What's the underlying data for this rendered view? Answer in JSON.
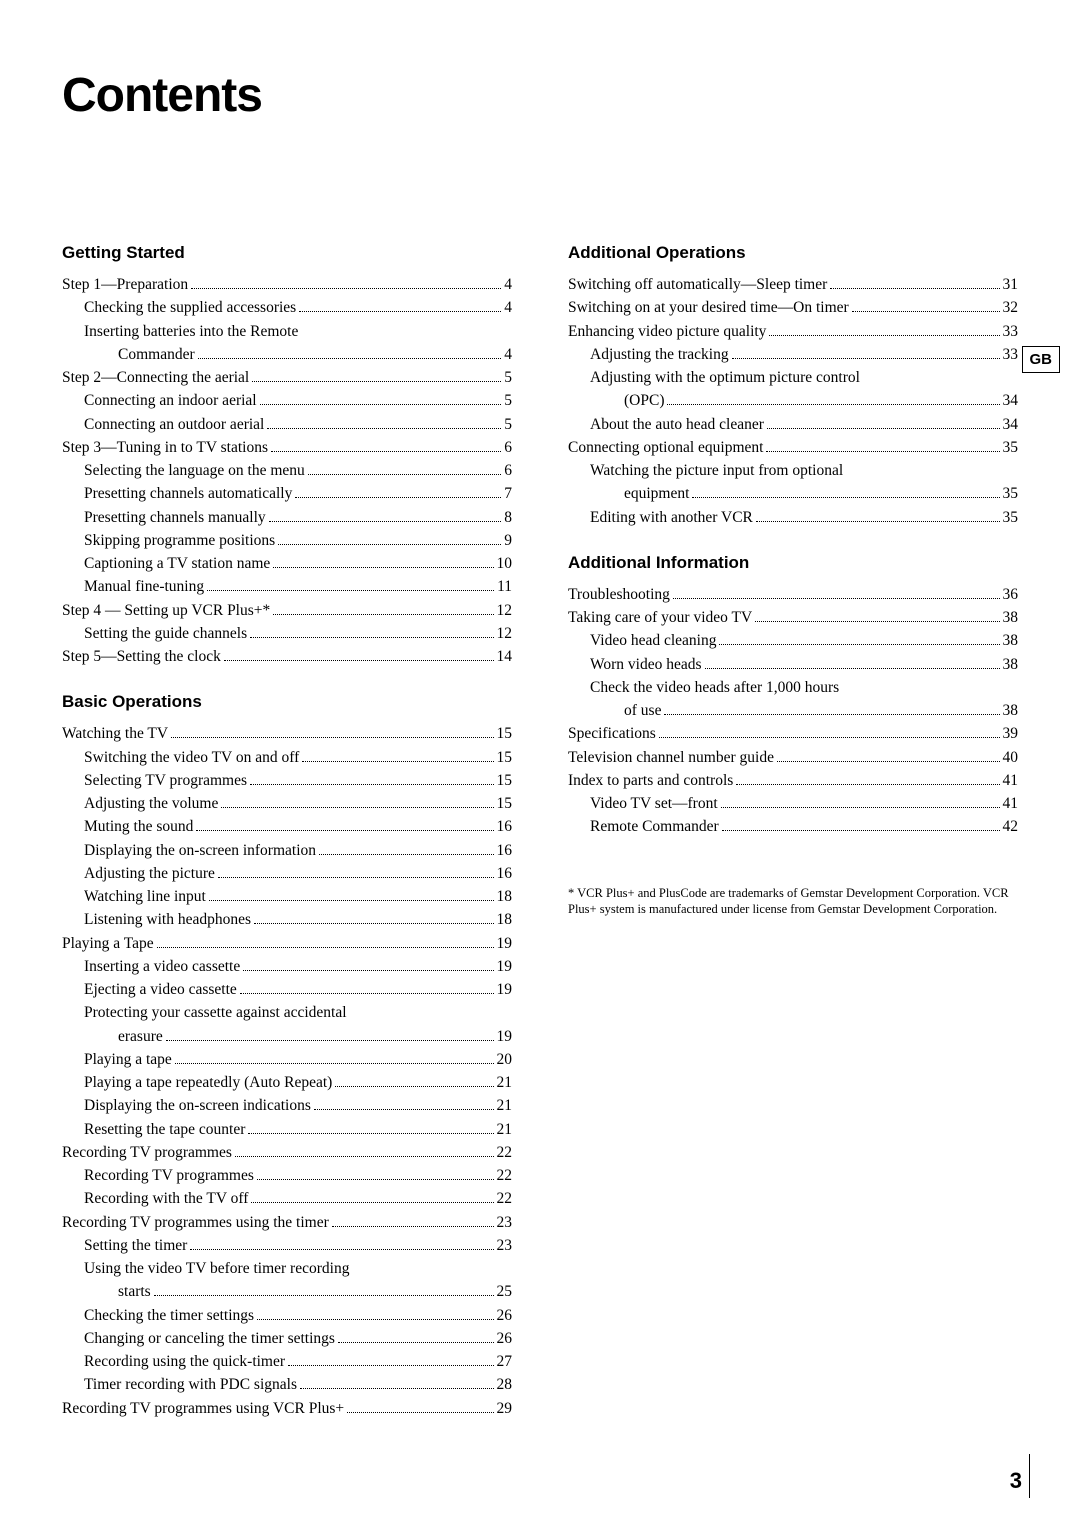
{
  "title": "Contents",
  "side_tab": "GB",
  "page_number": "3",
  "footnote": "* VCR Plus+ and PlusCode are trademarks of Gemstar Development Corporation.  VCR Plus+ system is manufactured under license from Gemstar Development Corporation.",
  "left": {
    "sections": [
      {
        "heading": "Getting Started",
        "items": [
          {
            "label": "Step 1—Preparation",
            "page": "4",
            "indent": 0
          },
          {
            "label": "Checking the supplied accessories",
            "page": "4",
            "indent": 1
          },
          {
            "label": "Inserting batteries into the Remote",
            "indent": 1,
            "cont": true
          },
          {
            "label": "Commander",
            "page": "4",
            "indent": 2
          },
          {
            "label": "Step 2—Connecting the aerial",
            "page": "5",
            "indent": 0
          },
          {
            "label": "Connecting an indoor aerial",
            "page": "5",
            "indent": 1
          },
          {
            "label": "Connecting an outdoor aerial",
            "page": "5",
            "indent": 1
          },
          {
            "label": "Step 3—Tuning in to TV stations",
            "page": "6",
            "indent": 0
          },
          {
            "label": "Selecting the language on the menu",
            "page": "6",
            "indent": 1
          },
          {
            "label": "Presetting channels automatically",
            "page": "7",
            "indent": 1
          },
          {
            "label": "Presetting channels manually",
            "page": "8",
            "indent": 1
          },
          {
            "label": "Skipping programme positions",
            "page": "9",
            "indent": 1
          },
          {
            "label": "Captioning a TV station name",
            "page": "10",
            "indent": 1
          },
          {
            "label": "Manual fine-tuning",
            "page": "11",
            "indent": 1
          },
          {
            "label": "Step 4 — Setting up VCR Plus+*",
            "page": "12",
            "indent": 0
          },
          {
            "label": "Setting the guide channels",
            "page": "12",
            "indent": 1
          },
          {
            "label": "Step 5—Setting the clock",
            "page": "14",
            "indent": 0
          }
        ]
      },
      {
        "heading": "Basic Operations",
        "items": [
          {
            "label": "Watching the TV",
            "page": "15",
            "indent": 0
          },
          {
            "label": "Switching the  video TV on and off",
            "page": "15",
            "indent": 1
          },
          {
            "label": "Selecting TV programmes",
            "page": "15",
            "indent": 1
          },
          {
            "label": "Adjusting the volume",
            "page": "15",
            "indent": 1
          },
          {
            "label": "Muting the sound",
            "page": "16",
            "indent": 1
          },
          {
            "label": "Displaying the on-screen information",
            "page": "16",
            "indent": 1
          },
          {
            "label": "Adjusting the picture",
            "page": "16",
            "indent": 1
          },
          {
            "label": "Watching line input",
            "page": "18",
            "indent": 1
          },
          {
            "label": "Listening with headphones",
            "page": "18",
            "indent": 1
          },
          {
            "label": "Playing a Tape",
            "page": "19",
            "indent": 0
          },
          {
            "label": "Inserting a video cassette",
            "page": "19",
            "indent": 1
          },
          {
            "label": "Ejecting a video cassette",
            "page": "19",
            "indent": 1
          },
          {
            "label": "Protecting your cassette against accidental",
            "indent": 1,
            "cont": true
          },
          {
            "label": "erasure",
            "page": "19",
            "indent": 2
          },
          {
            "label": "Playing a tape",
            "page": "20",
            "indent": 1
          },
          {
            "label": "Playing a tape repeatedly (Auto Repeat)",
            "page": "21",
            "indent": 1
          },
          {
            "label": "Displaying the on-screen indications",
            "page": "21",
            "indent": 1
          },
          {
            "label": "Resetting the tape counter",
            "page": "21",
            "indent": 1
          },
          {
            "label": "Recording TV programmes",
            "page": "22",
            "indent": 0
          },
          {
            "label": "Recording TV programmes",
            "page": "22",
            "indent": 1
          },
          {
            "label": "Recording with the TV off",
            "page": "22",
            "indent": 1
          },
          {
            "label": "Recording TV programmes using the timer",
            "page": "23",
            "indent": 0
          },
          {
            "label": "Setting the timer",
            "page": "23",
            "indent": 1
          },
          {
            "label": "Using the video TV before timer recording",
            "indent": 1,
            "cont": true
          },
          {
            "label": "starts",
            "page": "25",
            "indent": 2
          },
          {
            "label": "Checking the timer settings",
            "page": "26",
            "indent": 1
          },
          {
            "label": "Changing or canceling the timer settings",
            "page": "26",
            "indent": 1
          },
          {
            "label": "Recording using the quick-timer",
            "page": "27",
            "indent": 1
          },
          {
            "label": "Timer recording with PDC signals",
            "page": "28",
            "indent": 1
          },
          {
            "label": "Recording TV programmes using VCR Plus+ ",
            "page": "29",
            "indent": 0
          }
        ]
      }
    ]
  },
  "right": {
    "sections": [
      {
        "heading": "Additional Operations",
        "items": [
          {
            "label": "Switching off automatically—Sleep timer",
            "page": "31",
            "indent": 0
          },
          {
            "label": "Switching on at your desired time—On timer",
            "page": "32",
            "indent": 0
          },
          {
            "label": "Enhancing video picture quality",
            "page": "33",
            "indent": 0
          },
          {
            "label": "Adjusting the tracking",
            "page": "33",
            "indent": 1
          },
          {
            "label": "Adjusting with the optimum picture control",
            "indent": 1,
            "cont": true
          },
          {
            "label": "(OPC)",
            "page": "34",
            "indent": 2
          },
          {
            "label": "About the auto head cleaner",
            "page": "34",
            "indent": 1
          },
          {
            "label": "Connecting optional equipment",
            "page": "35",
            "indent": 0
          },
          {
            "label": "Watching the picture input from optional",
            "indent": 1,
            "cont": true
          },
          {
            "label": "equipment",
            "page": "35",
            "indent": 2
          },
          {
            "label": "Editing with another VCR",
            "page": "35",
            "indent": 1
          }
        ]
      },
      {
        "heading": "Additional Information",
        "items": [
          {
            "label": "Troubleshooting",
            "page": "36",
            "indent": 0
          },
          {
            "label": "Taking care of your video TV",
            "page": "38",
            "indent": 0
          },
          {
            "label": "Video head cleaning",
            "page": "38",
            "indent": 1
          },
          {
            "label": "Worn video heads",
            "page": "38",
            "indent": 1
          },
          {
            "label": "Check the video heads after 1,000 hours",
            "indent": 1,
            "cont": true
          },
          {
            "label": "of use",
            "page": "38",
            "indent": 2
          },
          {
            "label": "Specifications",
            "page": "39",
            "indent": 0
          },
          {
            "label": "Television channel number guide",
            "page": "40",
            "indent": 0
          },
          {
            "label": "Index to parts and controls",
            "page": "41",
            "indent": 0
          },
          {
            "label": "Video TV set—front",
            "page": "41",
            "indent": 1
          },
          {
            "label": "Remote Commander",
            "page": "42",
            "indent": 1
          }
        ]
      }
    ]
  }
}
